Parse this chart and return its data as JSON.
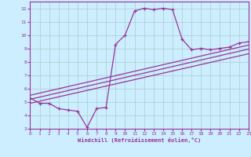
{
  "xlabel": "Windchill (Refroidissement éolien,°C)",
  "bg_color": "#cceeff",
  "grid_color": "#aacccc",
  "line_color": "#993399",
  "xlim": [
    0,
    23
  ],
  "ylim": [
    3,
    12.5
  ],
  "x_ticks": [
    0,
    1,
    2,
    3,
    4,
    5,
    6,
    7,
    8,
    9,
    10,
    11,
    12,
    13,
    14,
    15,
    16,
    17,
    18,
    19,
    20,
    21,
    22,
    23
  ],
  "y_ticks": [
    3,
    4,
    5,
    6,
    7,
    8,
    9,
    10,
    11,
    12
  ],
  "main_x": [
    0,
    1,
    2,
    3,
    4,
    5,
    6,
    7,
    8,
    9,
    10,
    11,
    12,
    13,
    14,
    15,
    16,
    17,
    18,
    19,
    20,
    21,
    22,
    23
  ],
  "main_y": [
    5.3,
    4.9,
    4.9,
    4.5,
    4.4,
    4.3,
    3.1,
    4.5,
    4.6,
    9.3,
    10.0,
    11.8,
    12.0,
    11.9,
    12.0,
    11.9,
    9.7,
    8.9,
    9.0,
    8.9,
    9.0,
    9.1,
    9.4,
    9.5
  ],
  "line1_x": [
    0,
    23
  ],
  "line1_y": [
    4.9,
    8.6
  ],
  "line2_x": [
    0,
    23
  ],
  "line2_y": [
    5.2,
    8.95
  ],
  "line3_x": [
    0,
    23
  ],
  "line3_y": [
    5.5,
    9.25
  ]
}
